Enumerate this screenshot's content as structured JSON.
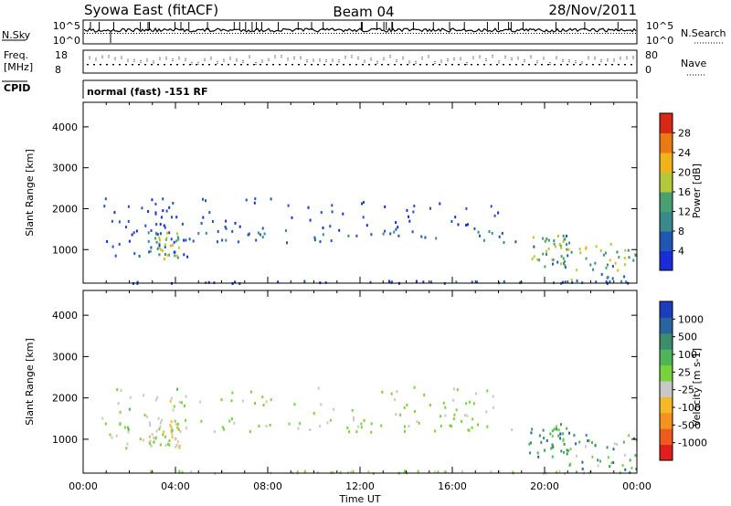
{
  "header": {
    "station": "Syowa East (fitACF)",
    "beam": "Beam 04",
    "date": "28/Nov/2011"
  },
  "summary_panels": {
    "nsky": {
      "label": "N.Sky",
      "top_tick": "10^5",
      "bottom_tick": "10^0"
    },
    "nsearch": {
      "label": "N.Search",
      "top_tick": "10^5",
      "bottom_tick": "10^0"
    },
    "freq": {
      "label_line1": "Freq.",
      "label_line2": "[MHz]",
      "top_tick": "18",
      "bottom_tick": "8"
    },
    "nave": {
      "label": "Nave",
      "top_tick": "80",
      "bottom_tick": "0"
    },
    "cpid": {
      "label": "CPID",
      "text": "normal (fast) -151 RF"
    }
  },
  "chart_data": [
    {
      "type": "heatmap",
      "name": "power",
      "ylabel": "Slant Range [km]",
      "yticks": [
        "1000",
        "2000",
        "3000",
        "4000"
      ],
      "ylim": [
        180,
        4600
      ],
      "xlim": [
        0,
        24
      ],
      "colorbar_label": "Power [dB]",
      "colorbar_ticks": [
        "4",
        "8",
        "12",
        "16",
        "20",
        "24",
        "28"
      ],
      "colorbar_range": [
        0,
        32
      ],
      "colors": [
        "#1a2bd8",
        "#2256b4",
        "#3a8a8c",
        "#4aa070",
        "#b4c83c",
        "#f0b41a",
        "#ec7a14",
        "#d82818"
      ],
      "regions": [
        {
          "t": [
            2.8,
            4.2
          ],
          "r": [
            800,
            1500
          ],
          "v": [
            4,
            22
          ]
        },
        {
          "t": [
            4.2,
            18.8
          ],
          "r": [
            1200,
            1500
          ],
          "v": [
            4,
            10
          ]
        },
        {
          "t": [
            19.3,
            21.0
          ],
          "r": [
            600,
            1400
          ],
          "v": [
            6,
            20
          ]
        },
        {
          "t": [
            21.0,
            24.0
          ],
          "r": [
            200,
            1200
          ],
          "v": [
            4,
            24
          ]
        },
        {
          "t": [
            0.8,
            4.5
          ],
          "r": [
            800,
            2300
          ],
          "v": [
            2,
            8
          ]
        },
        {
          "t": [
            5.0,
            18.0
          ],
          "r": [
            1500,
            2300
          ],
          "v": [
            2,
            6
          ]
        },
        {
          "t": [
            2.0,
            24.0
          ],
          "r": [
            200,
            260
          ],
          "v": [
            2,
            10
          ]
        }
      ]
    },
    {
      "type": "heatmap",
      "name": "velocity",
      "ylabel": "Slant Range [km]",
      "yticks": [
        "1000",
        "2000",
        "3000",
        "4000"
      ],
      "ylim": [
        180,
        4600
      ],
      "xlim": [
        0,
        24
      ],
      "xlabel": "Time UT",
      "xticks": [
        "00:00",
        "04:00",
        "08:00",
        "12:00",
        "16:00",
        "20:00",
        "00:00"
      ],
      "colorbar_label": "Velocity [m s-1]",
      "colorbar_ticks": [
        "-1000",
        "-500",
        "-100",
        "-25",
        "25",
        "100",
        "500",
        "1000"
      ],
      "colorbar_range": [
        -1250,
        1250
      ],
      "colors": [
        "#e01e1e",
        "#f05a1e",
        "#f5911e",
        "#f5b928",
        "#c8c8c8",
        "#78d23c",
        "#50b45a",
        "#3c8c6e",
        "#2a64a0",
        "#1e3cbe"
      ],
      "regions": [
        {
          "t": [
            2.8,
            4.2
          ],
          "r": [
            800,
            1500
          ],
          "v": [
            -400,
            200
          ]
        },
        {
          "t": [
            4.2,
            18.8
          ],
          "r": [
            1200,
            1500
          ],
          "v": [
            -25,
            40
          ]
        },
        {
          "t": [
            19.3,
            21.0
          ],
          "r": [
            600,
            1400
          ],
          "v": [
            200,
            800
          ]
        },
        {
          "t": [
            21.0,
            24.0
          ],
          "r": [
            200,
            1200
          ],
          "v": [
            -200,
            1000
          ]
        },
        {
          "t": [
            0.8,
            4.5
          ],
          "r": [
            800,
            2300
          ],
          "v": [
            -300,
            300
          ]
        },
        {
          "t": [
            5.0,
            18.0
          ],
          "r": [
            1500,
            2300
          ],
          "v": [
            -200,
            200
          ]
        },
        {
          "t": [
            2.0,
            24.0
          ],
          "r": [
            200,
            260
          ],
          "v": [
            -100,
            100
          ]
        }
      ]
    }
  ]
}
